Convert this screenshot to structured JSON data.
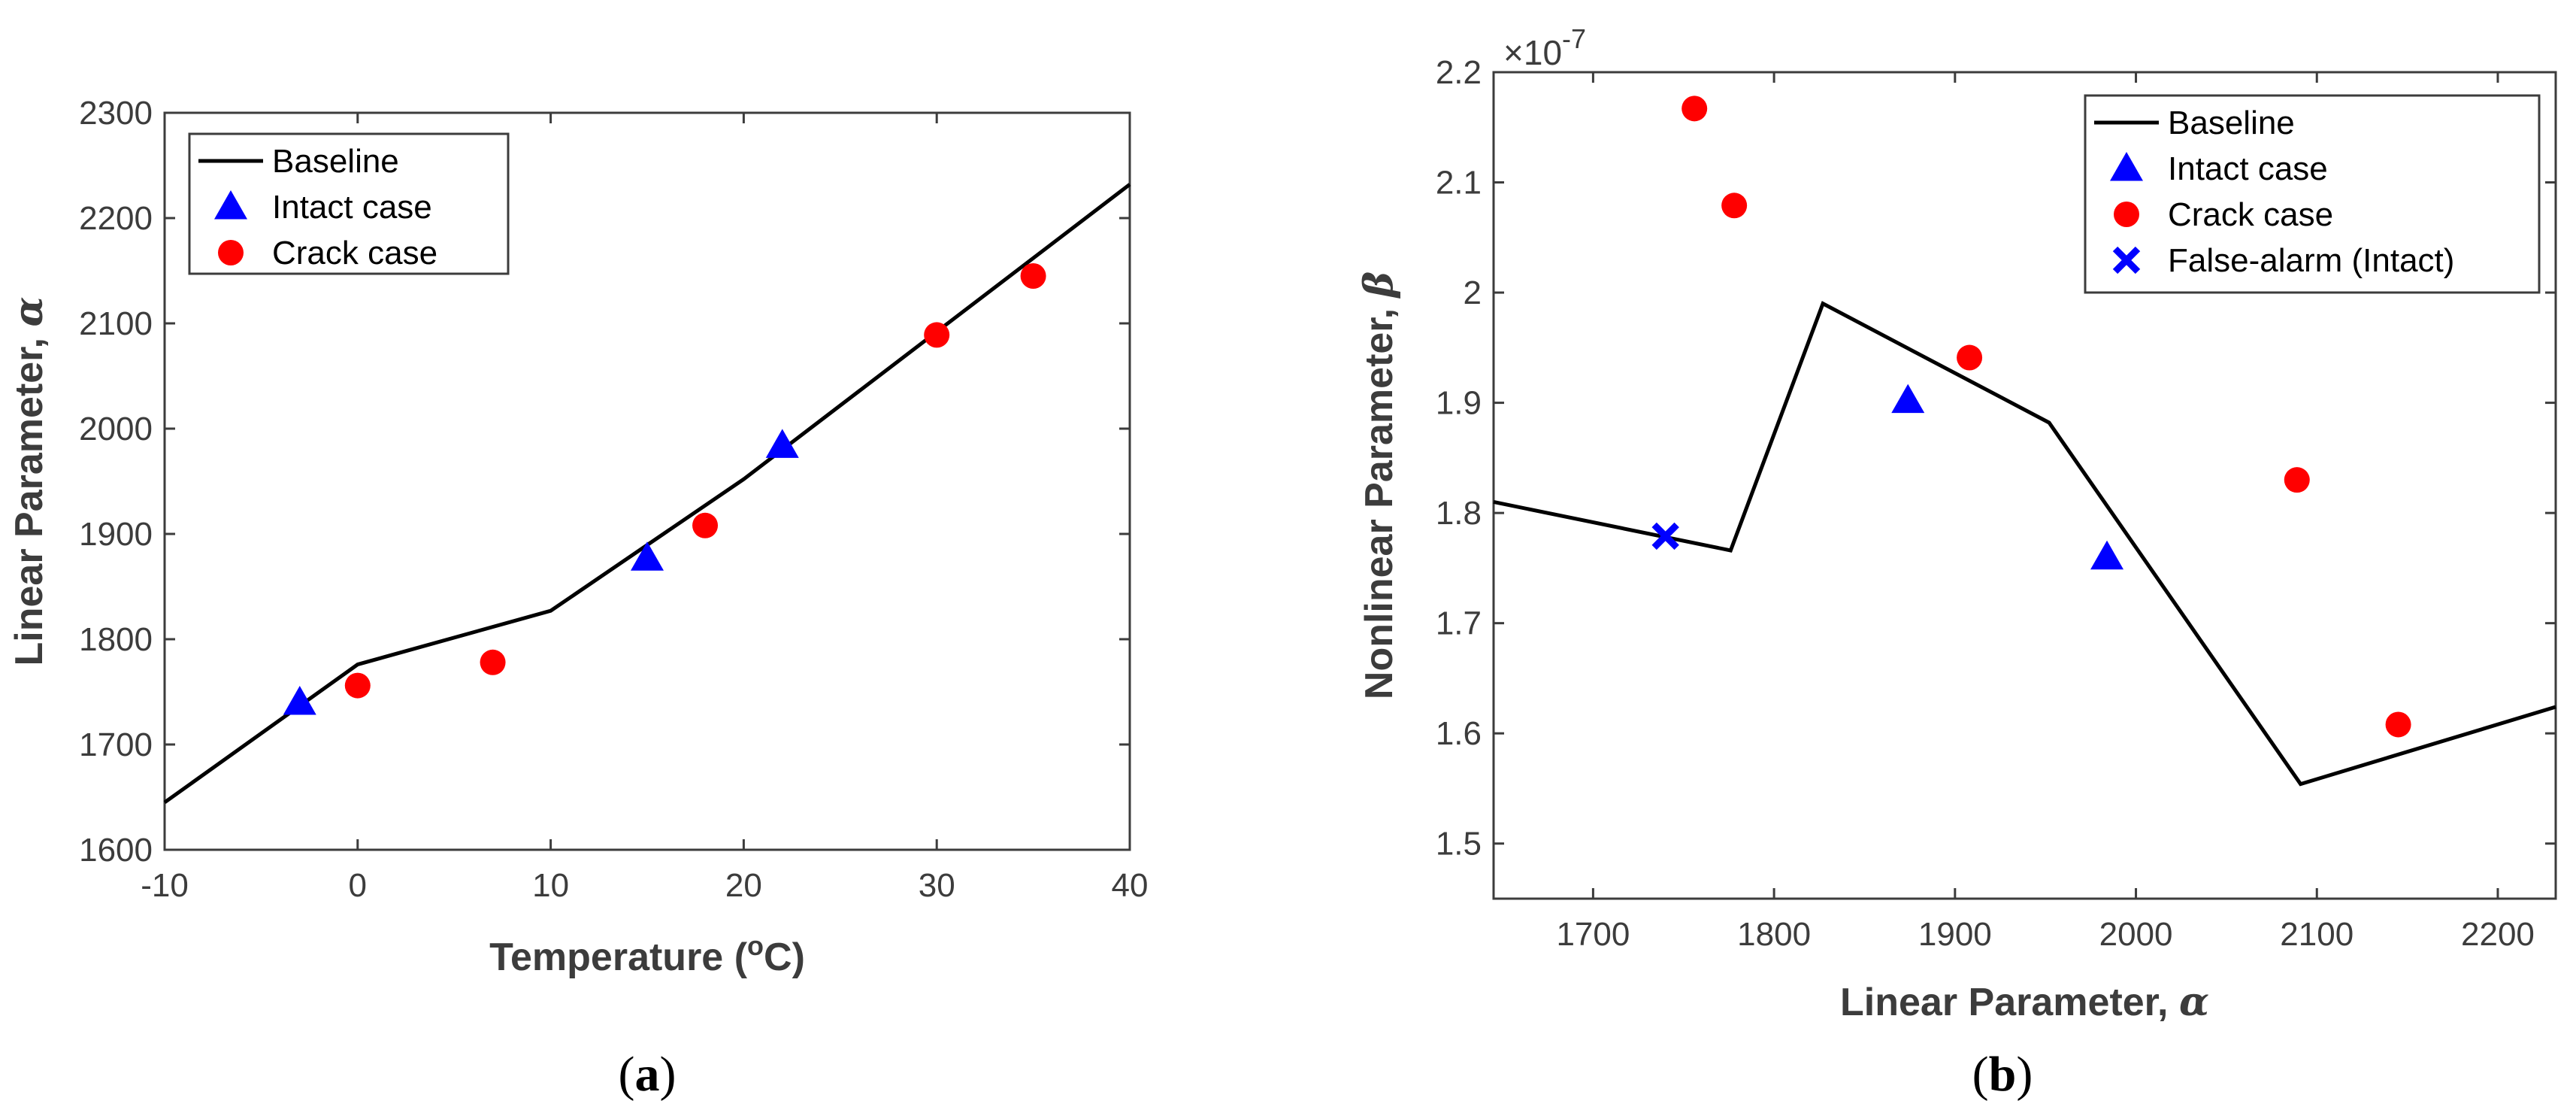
{
  "chart_data": [
    {
      "type": "line",
      "panel_label": "a",
      "xlabel": "Temperature",
      "xlabel_unit_prefix": "(",
      "xlabel_unit_sup": "o",
      "xlabel_unit_suffix": "C)",
      "ylabel": "Linear Parameter,",
      "ylabel_symbol": "α",
      "xlim": [
        -10,
        40
      ],
      "ylim": [
        1600,
        2300
      ],
      "xticks": [
        -10,
        0,
        10,
        20,
        30,
        40
      ],
      "yticks": [
        1600,
        1700,
        1800,
        1900,
        2000,
        2100,
        2200,
        2300
      ],
      "legend": [
        "Baseline",
        "Intact case",
        "Crack case"
      ],
      "legend_position": "top-left",
      "series": [
        {
          "name": "Baseline",
          "style": "line",
          "color": "#000000",
          "x": [
            -10,
            0,
            10,
            20,
            40
          ],
          "y": [
            1645,
            1776,
            1827,
            1952,
            2232
          ]
        },
        {
          "name": "Intact case",
          "style": "triangle",
          "color": "#0000ff",
          "x": [
            -3,
            15,
            22
          ],
          "y": [
            1740,
            1877,
            1984
          ]
        },
        {
          "name": "Crack case",
          "style": "circle",
          "color": "#ff0000",
          "x": [
            0,
            7,
            18,
            30,
            35
          ],
          "y": [
            1756,
            1778,
            1908,
            2089,
            2145
          ]
        }
      ]
    },
    {
      "type": "line",
      "panel_label": "b",
      "xlabel": "Linear Parameter,",
      "xlabel_symbol": "α",
      "ylabel": "Nonlinear Parameter,",
      "ylabel_symbol": "β",
      "y_multiplier_base": "×10",
      "y_multiplier_exp": "-7",
      "xlim": [
        1645,
        2232
      ],
      "ylim": [
        1.45,
        2.2
      ],
      "xticks": [
        1700,
        1800,
        1900,
        2000,
        2100,
        2200
      ],
      "yticks": [
        1.5,
        1.6,
        1.7,
        1.8,
        1.9,
        2,
        2.1,
        2.2
      ],
      "ytick_labels": [
        "1.5",
        "1.6",
        "1.7",
        "1.8",
        "1.9",
        "2",
        "2.1",
        "2.2"
      ],
      "legend": [
        "Baseline",
        "Intact case",
        "Crack case",
        "False-alarm (Intact)"
      ],
      "legend_position": "top-right",
      "series": [
        {
          "name": "Baseline",
          "style": "line",
          "color": "#000000",
          "x": [
            1645,
            1776,
            1827,
            1952,
            2091,
            2232
          ],
          "y": [
            1.81,
            1.766,
            1.99,
            1.882,
            1.554,
            1.624
          ]
        },
        {
          "name": "Intact case",
          "style": "triangle",
          "color": "#0000ff",
          "x": [
            1874,
            1984
          ],
          "y": [
            1.902,
            1.76
          ]
        },
        {
          "name": "Crack case",
          "style": "circle",
          "color": "#ff0000",
          "x": [
            1756,
            1778,
            1908,
            2089,
            2145
          ],
          "y": [
            2.167,
            2.079,
            1.941,
            1.83,
            1.608
          ]
        },
        {
          "name": "False-alarm (Intact)",
          "style": "x",
          "color": "#0000ff",
          "x": [
            1740
          ],
          "y": [
            1.779
          ]
        }
      ]
    }
  ]
}
